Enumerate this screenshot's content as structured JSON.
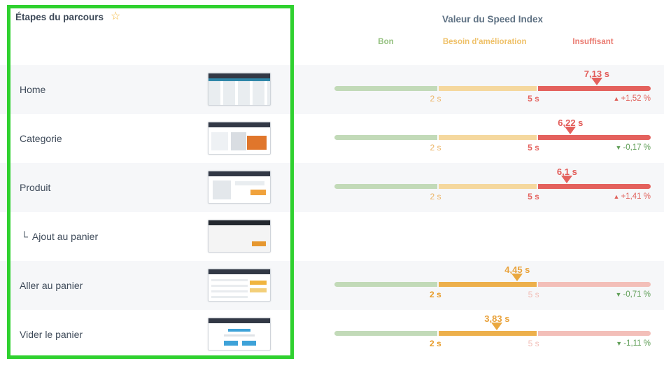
{
  "panel": {
    "title": "Étapes du parcours",
    "star_icon": "☆"
  },
  "header": {
    "title": "Valeur du Speed Index",
    "zones": [
      {
        "label": "Bon",
        "color": "#93c07e"
      },
      {
        "label": "Besoin d'amélioration",
        "color": "#efc169"
      },
      {
        "label": "Insuffisant",
        "color": "#ea7a70"
      }
    ]
  },
  "scale": {
    "low": "2 s",
    "high": "5 s"
  },
  "rows": [
    {
      "label": "Home",
      "value": 7.13,
      "value_label": "7,13 s",
      "zone": "red",
      "delta": "+1,52 %",
      "delta_dir": "up",
      "delta_arrow": "▲"
    },
    {
      "label": "Categorie",
      "value": 6.22,
      "value_label": "6,22 s",
      "zone": "red",
      "delta": "-0,17 %",
      "delta_dir": "down",
      "delta_arrow": "▼"
    },
    {
      "label": "Produit",
      "value": 6.1,
      "value_label": "6,1 s",
      "zone": "red",
      "delta": "+1,41 %",
      "delta_dir": "up",
      "delta_arrow": "▲"
    },
    {
      "label": "Ajout au panier",
      "prefix": "└",
      "indent": true,
      "value": null,
      "zone": "none"
    },
    {
      "label": "Aller au panier",
      "value": 4.45,
      "value_label": "4,45 s",
      "zone": "orange",
      "delta": "-0,71 %",
      "delta_dir": "down",
      "delta_arrow": "▼"
    },
    {
      "label": "Vider le panier",
      "value": 3.83,
      "value_label": "3,83 s",
      "zone": "orange",
      "delta": "-1,11 %",
      "delta_dir": "down",
      "delta_arrow": "▼"
    }
  ],
  "chart_data": {
    "type": "bar",
    "title": "Valeur du Speed Index",
    "unit": "s",
    "thresholds": {
      "good_max": 2,
      "needs_improvement_max": 5
    },
    "zone_labels": [
      "Bon",
      "Besoin d'amélioration",
      "Insuffisant"
    ],
    "rows": [
      {
        "step": "Home",
        "speed_index_s": 7.13,
        "zone": "Insuffisant",
        "change_pct": 1.52
      },
      {
        "step": "Categorie",
        "speed_index_s": 6.22,
        "zone": "Insuffisant",
        "change_pct": -0.17
      },
      {
        "step": "Produit",
        "speed_index_s": 6.1,
        "zone": "Insuffisant",
        "change_pct": 1.41
      },
      {
        "step": "Ajout au panier",
        "speed_index_s": null,
        "zone": null,
        "change_pct": null
      },
      {
        "step": "Aller au panier",
        "speed_index_s": 4.45,
        "zone": "Besoin d'amélioration",
        "change_pct": -0.71
      },
      {
        "step": "Vider le panier",
        "speed_index_s": 3.83,
        "zone": "Besoin d'amélioration",
        "change_pct": -1.11
      }
    ]
  }
}
